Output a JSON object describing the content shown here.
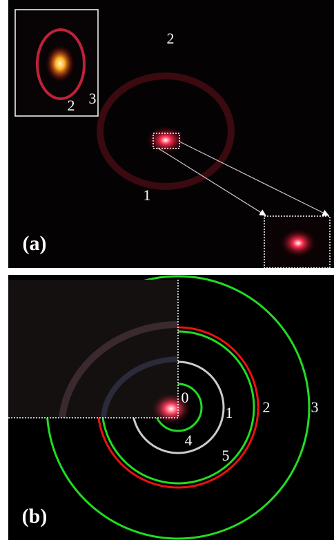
{
  "panel_a": {
    "label": "(a)",
    "ring_labels": [
      "2",
      "1"
    ],
    "inset_labels": [
      "2",
      "3"
    ]
  },
  "panel_b": {
    "label": "(b)",
    "ring_labels": [
      "0",
      "1",
      "2",
      "3",
      "4",
      "5"
    ]
  }
}
